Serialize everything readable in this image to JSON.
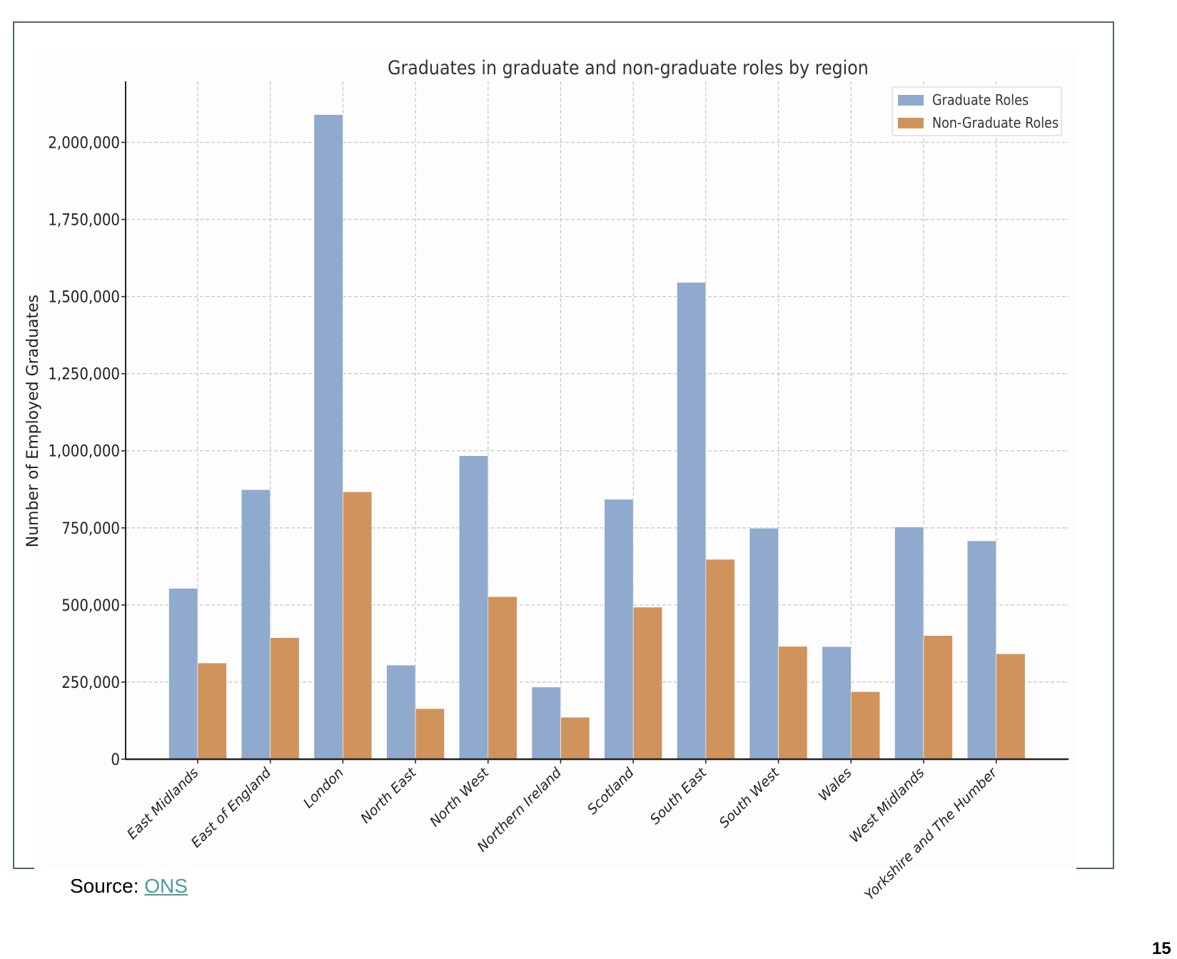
{
  "chart_data": {
    "type": "bar",
    "title": "Graduates in graduate and non-graduate roles by region",
    "xlabel": "",
    "ylabel": "Number of Employed Graduates",
    "ylim": [
      0,
      2200000
    ],
    "yticks": [
      0,
      250000,
      500000,
      750000,
      1000000,
      1250000,
      1500000,
      1750000,
      2000000
    ],
    "ytick_labels": [
      "0",
      "250,000",
      "500,000",
      "750,000",
      "1,000,000",
      "1,250,000",
      "1,500,000",
      "1,750,000",
      "2,000,000"
    ],
    "grid": true,
    "legend_position": "top-right",
    "categories": [
      "East Midlands",
      "East of England",
      "London",
      "North East",
      "North West",
      "Northern Ireland",
      "Scotland",
      "South East",
      "South West",
      "Wales",
      "West Midlands",
      "Yorkshire and The Humber"
    ],
    "series": [
      {
        "name": "Graduate Roles",
        "color": "#8faacc",
        "values": [
          554000,
          874000,
          2090000,
          305000,
          984000,
          234000,
          843000,
          1546000,
          749000,
          365000,
          753000,
          708000
        ]
      },
      {
        "name": "Non-Graduate Roles",
        "color": "#d0935c",
        "values": [
          312000,
          394000,
          867000,
          164000,
          527000,
          136000,
          493000,
          648000,
          366000,
          219000,
          401000,
          342000
        ]
      }
    ]
  },
  "footer": {
    "source_label": "Source:",
    "source_link": "ONS",
    "page_number": "15"
  }
}
